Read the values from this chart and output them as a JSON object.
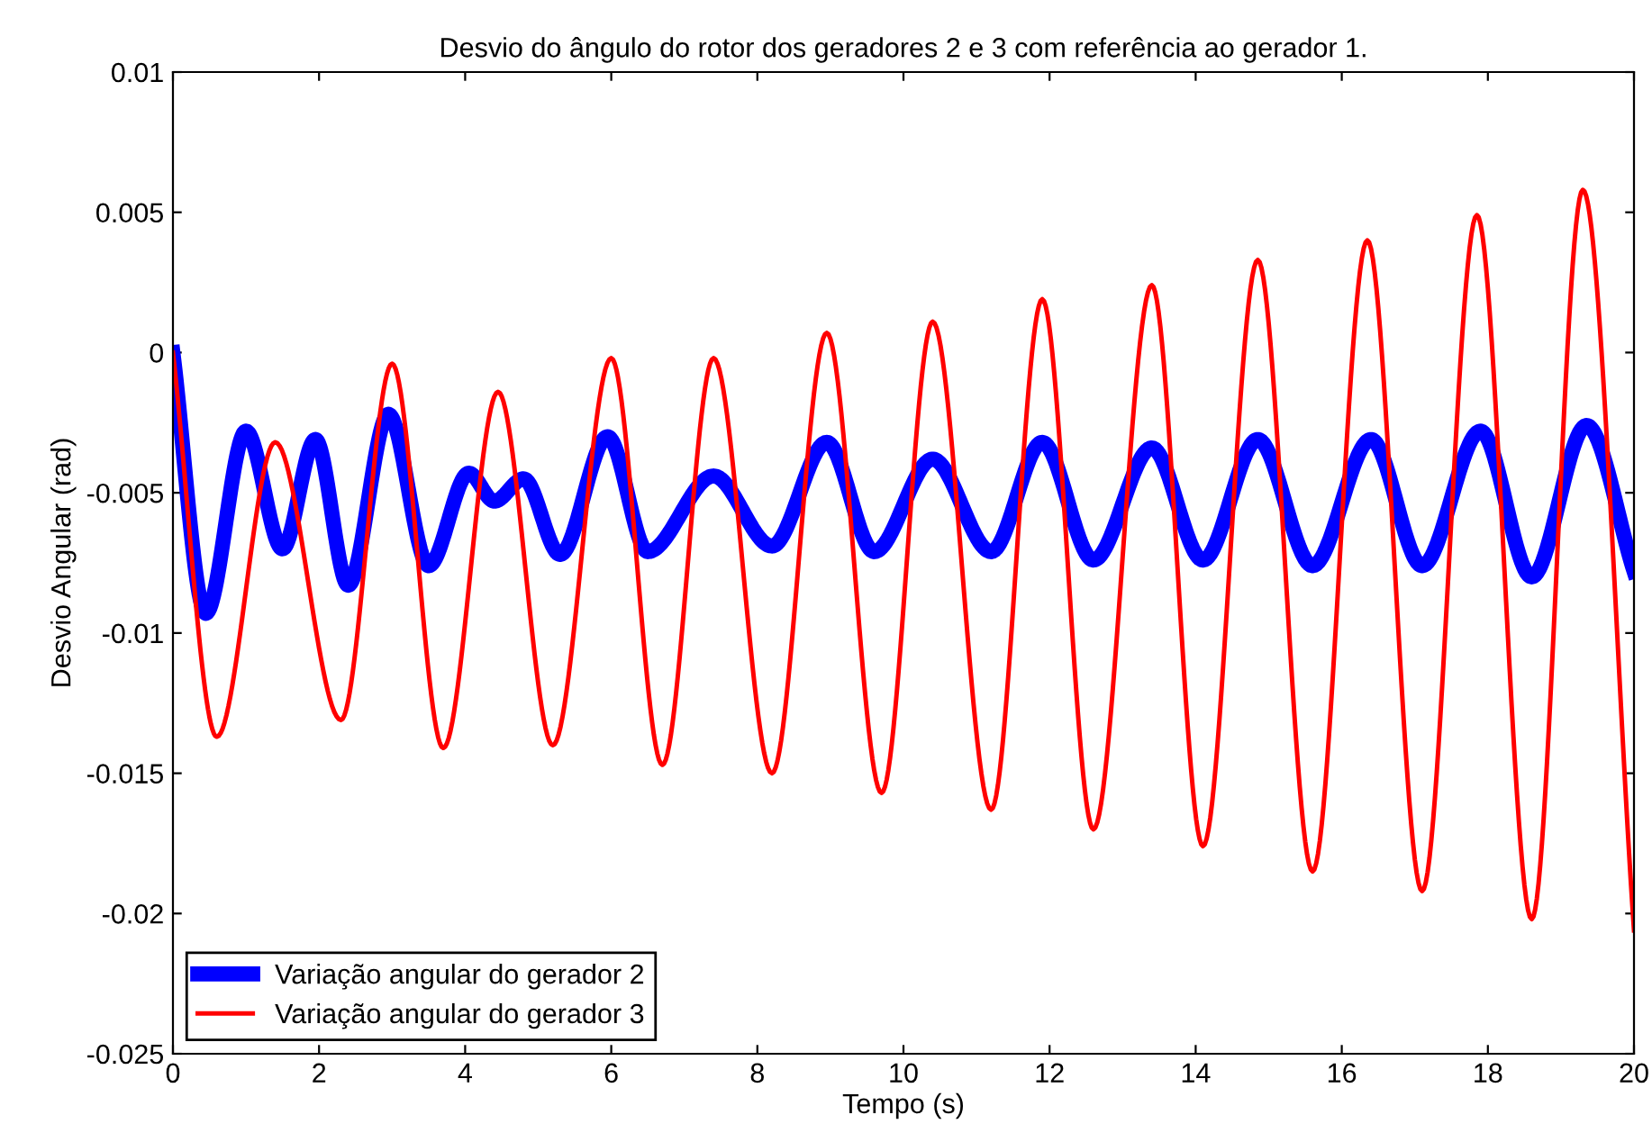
{
  "chart_data": {
    "type": "line",
    "title": "Desvio do ângulo do rotor dos geradores 2 e 3 com referência ao gerador 1.",
    "xlabel": "Tempo (s)",
    "ylabel": "Desvio Angular (rad)",
    "xlim": [
      0,
      20
    ],
    "xticks": [
      0,
      2,
      4,
      6,
      8,
      10,
      12,
      14,
      16,
      18,
      20
    ],
    "ylim": [
      -0.025,
      0.01
    ],
    "yticks": [
      {
        "value": -0.025,
        "label": "-0.025"
      },
      {
        "value": -0.02,
        "label": "-0.02"
      },
      {
        "value": -0.015,
        "label": "-0.015"
      },
      {
        "value": -0.01,
        "label": "-0.01"
      },
      {
        "value": -0.005,
        "label": "-0.005"
      },
      {
        "value": 0,
        "label": "0"
      },
      {
        "value": 0.005,
        "label": "0.005"
      },
      {
        "value": 0.01,
        "label": "0.01"
      }
    ],
    "legend": "bottom left",
    "grid": false,
    "series": [
      {
        "name": "Variação angular do gerador 2",
        "color": "#0000ff",
        "x": [
          0,
          0.45,
          1.0,
          1.5,
          1.95,
          2.4,
          2.95,
          3.5,
          4.05,
          4.4,
          4.8,
          5.3,
          5.95,
          6.5,
          7.4,
          8.2,
          8.95,
          9.6,
          10.4,
          11.2,
          11.9,
          12.6,
          13.4,
          14.1,
          14.85,
          15.6,
          16.4,
          17.1,
          17.9,
          18.6,
          19.35,
          20.0
        ],
        "values": [
          0,
          -0.0093,
          -0.0028,
          -0.007,
          -0.0031,
          -0.0083,
          -0.0022,
          -0.0076,
          -0.0043,
          -0.0053,
          -0.0045,
          -0.0072,
          -0.003,
          -0.0071,
          -0.0044,
          -0.0069,
          -0.0032,
          -0.0071,
          -0.0038,
          -0.0071,
          -0.0032,
          -0.0074,
          -0.0034,
          -0.0074,
          -0.0031,
          -0.0076,
          -0.0031,
          -0.0076,
          -0.0028,
          -0.008,
          -0.0026,
          -0.0078
        ]
      },
      {
        "name": "Variação angular do gerador 3",
        "color": "#ff0000",
        "x": [
          0,
          0.6,
          1.4,
          2.3,
          3.0,
          3.7,
          4.45,
          5.2,
          6.0,
          6.7,
          7.4,
          8.2,
          8.95,
          9.7,
          10.4,
          11.2,
          11.9,
          12.6,
          13.4,
          14.1,
          14.85,
          15.6,
          16.35,
          17.1,
          17.85,
          18.6,
          19.3,
          20.0
        ],
        "values": [
          0,
          -0.0137,
          -0.0032,
          -0.0131,
          -0.0004,
          -0.0141,
          -0.0014,
          -0.014,
          -0.0002,
          -0.0147,
          -0.0002,
          -0.015,
          0.0007,
          -0.0157,
          0.0011,
          -0.0163,
          0.0019,
          -0.017,
          0.0024,
          -0.0176,
          0.0033,
          -0.0185,
          0.004,
          -0.0192,
          0.0049,
          -0.0202,
          0.0058,
          -0.0206
        ]
      }
    ]
  }
}
